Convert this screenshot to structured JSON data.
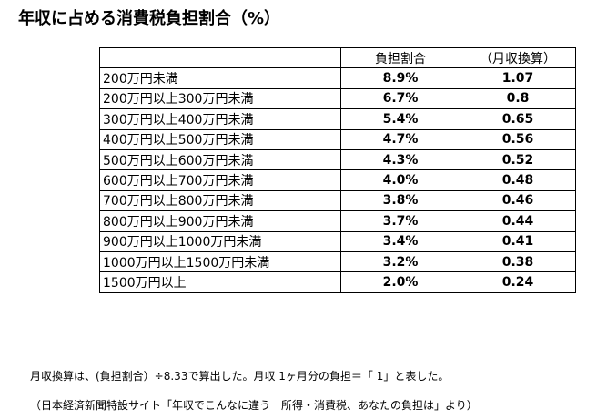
{
  "title": "年収に占める消費税負担割合（%）",
  "table": {
    "headers": {
      "ratio": "負担割合",
      "monthly": "（月収換算）"
    },
    "rows": [
      {
        "income": "200万円未満",
        "ratio": "8.9%",
        "monthly": "1.07"
      },
      {
        "income": "200万円以上300万円未満",
        "ratio": "6.7%",
        "monthly": "0.8"
      },
      {
        "income": "300万円以上400万円未満",
        "ratio": "5.4%",
        "monthly": "0.65"
      },
      {
        "income": "400万円以上500万円未満",
        "ratio": "4.7%",
        "monthly": "0.56"
      },
      {
        "income": "500万円以上600万円未満",
        "ratio": "4.3%",
        "monthly": "0.52"
      },
      {
        "income": "600万円以上700万円未満",
        "ratio": "4.0%",
        "monthly": "0.48"
      },
      {
        "income": "700万円以上800万円未満",
        "ratio": "3.8%",
        "monthly": "0.46"
      },
      {
        "income": "800万円以上900万円未満",
        "ratio": "3.7%",
        "monthly": "0.44"
      },
      {
        "income": "900万円以上1000万円未満",
        "ratio": "3.4%",
        "monthly": "0.41"
      },
      {
        "income": "1000万円以上1500万円未満",
        "ratio": "3.2%",
        "monthly": "0.38"
      },
      {
        "income": "1500万円以上",
        "ratio": "2.0%",
        "monthly": "0.24"
      }
    ]
  },
  "notes": {
    "line1": "月収換算は、(負担割合）÷8.33で算出した。月収 1ヶ月分の負担＝「 1」と表した。",
    "line2": "（日本経済新聞特設サイト「年収でこんなに違う　所得・消費税、あなたの負担は」より）"
  }
}
